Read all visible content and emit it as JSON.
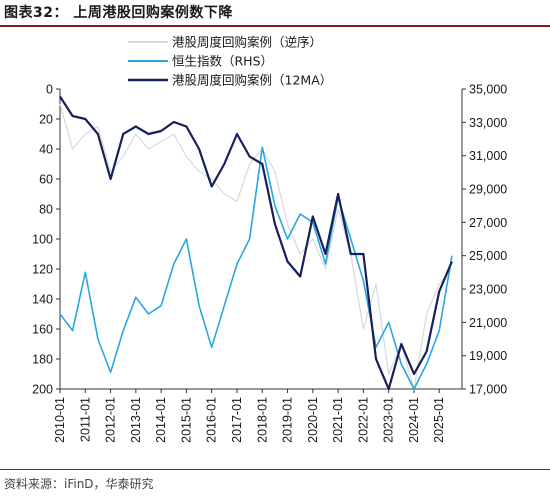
{
  "header": {
    "title": "图表32：  上周港股回购案例数下降"
  },
  "footer": {
    "source": "资料来源：iFinD，华泰研究"
  },
  "chart_data": {
    "type": "line",
    "x_ticks": [
      "2010-01",
      "2011-01",
      "2012-01",
      "2013-01",
      "2014-01",
      "2015-01",
      "2016-01",
      "2017-01",
      "2018-01",
      "2019-01",
      "2020-01",
      "2021-01",
      "2022-01",
      "2023-01",
      "2024-01",
      "2025-01"
    ],
    "left_axis": {
      "reversed": true,
      "ylim": [
        0,
        200
      ],
      "ticks": [
        "0",
        "20",
        "40",
        "60",
        "80",
        "100",
        "120",
        "140",
        "160",
        "180",
        "200"
      ]
    },
    "right_axis": {
      "ylim": [
        17000,
        35000
      ],
      "ticks": [
        "35,000",
        "33,000",
        "31,000",
        "29,000",
        "27,000",
        "25,000",
        "23,000",
        "21,000",
        "19,000",
        "17,000"
      ]
    },
    "legend": {
      "placement": "top-center"
    },
    "x": [
      2010.0,
      2010.5,
      2011.0,
      2011.5,
      2012.0,
      2012.5,
      2013.0,
      2013.5,
      2014.0,
      2014.5,
      2015.0,
      2015.5,
      2016.0,
      2016.5,
      2017.0,
      2017.5,
      2018.0,
      2018.5,
      2019.0,
      2019.5,
      2020.0,
      2020.5,
      2021.0,
      2021.5,
      2022.0,
      2022.5,
      2023.0,
      2023.5,
      2024.0,
      2024.5,
      2025.0,
      2025.5
    ],
    "series": [
      {
        "name": "港股周度回购案例（逆序）",
        "axis": "left",
        "color": "#d9d9d9",
        "values": [
          10,
          40,
          30,
          25,
          55,
          45,
          30,
          40,
          35,
          30,
          45,
          55,
          60,
          70,
          75,
          50,
          40,
          55,
          90,
          110,
          100,
          120,
          80,
          110,
          160,
          130,
          190,
          170,
          200,
          150,
          130,
          120
        ]
      },
      {
        "name": "恒生指数（RHS）",
        "axis": "right",
        "color": "#29a8e0",
        "values": [
          21500,
          20500,
          24000,
          20000,
          18000,
          20500,
          22500,
          21500,
          22000,
          24500,
          26000,
          22000,
          19500,
          22000,
          24500,
          26000,
          31500,
          28000,
          26000,
          27500,
          27000,
          24500,
          28500,
          26000,
          23500,
          19500,
          21000,
          18500,
          17000,
          18500,
          20500,
          25000
        ]
      },
      {
        "name": "港股周度回购案例（12MA）",
        "axis": "left",
        "color": "#16205a",
        "values": [
          5,
          18,
          20,
          30,
          60,
          30,
          25,
          30,
          28,
          22,
          25,
          40,
          65,
          50,
          30,
          45,
          50,
          90,
          115,
          125,
          85,
          110,
          70,
          110,
          110,
          180,
          200,
          170,
          190,
          175,
          135,
          115
        ]
      }
    ]
  }
}
